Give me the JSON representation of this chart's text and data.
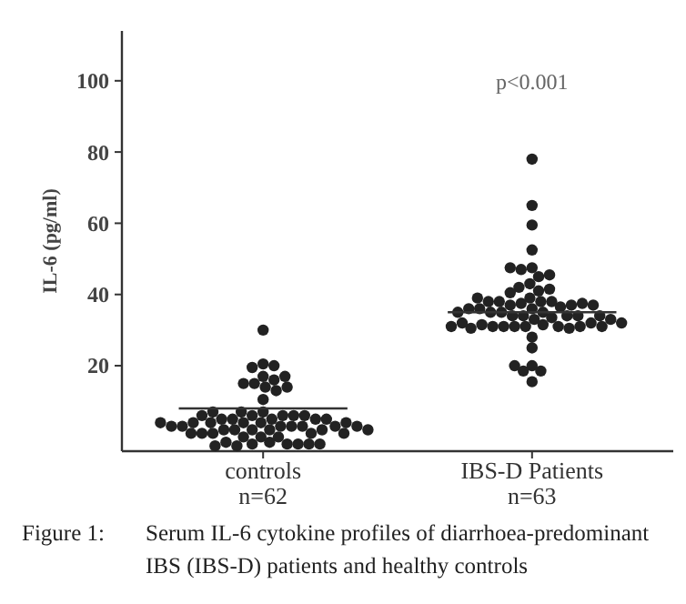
{
  "chart_data": {
    "type": "scatter",
    "ylabel": "IL-6 (pg/ml)",
    "categories": [
      "controls\nn=62",
      "IBS-D Patients\nn=63"
    ],
    "ylim": [
      -4,
      114
    ],
    "yticks": [
      20,
      40,
      60,
      80,
      100
    ],
    "series": [
      {
        "color": "#222222",
        "marker": "circle",
        "x": [
          "controls\nn=62",
          "controls\nn=62",
          "controls\nn=62",
          "controls\nn=62",
          "controls\nn=62",
          "controls\nn=62",
          "controls\nn=62",
          "controls\nn=62",
          "controls\nn=62",
          "controls\nn=62",
          "controls\nn=62",
          "controls\nn=62",
          "controls\nn=62",
          "controls\nn=62",
          "controls\nn=62",
          "controls\nn=62",
          "controls\nn=62",
          "controls\nn=62",
          "controls\nn=62",
          "controls\nn=62",
          "controls\nn=62",
          "controls\nn=62",
          "controls\nn=62",
          "controls\nn=62",
          "controls\nn=62",
          "controls\nn=62",
          "controls\nn=62",
          "controls\nn=62",
          "controls\nn=62",
          "controls\nn=62",
          "controls\nn=62",
          "controls\nn=62",
          "controls\nn=62",
          "controls\nn=62",
          "controls\nn=62",
          "controls\nn=62",
          "controls\nn=62",
          "controls\nn=62",
          "controls\nn=62",
          "controls\nn=62",
          "controls\nn=62",
          "controls\nn=62",
          "controls\nn=62",
          "controls\nn=62",
          "controls\nn=62",
          "controls\nn=62",
          "controls\nn=62",
          "controls\nn=62",
          "controls\nn=62",
          "controls\nn=62",
          "controls\nn=62",
          "controls\nn=62",
          "controls\nn=62",
          "controls\nn=62",
          "controls\nn=62",
          "controls\nn=62",
          "controls\nn=62",
          "controls\nn=62",
          "controls\nn=62",
          "controls\nn=62",
          "controls\nn=62",
          "controls\nn=62"
        ],
        "values": [
          30,
          20.5,
          19.5,
          17,
          20,
          15,
          14,
          13,
          15,
          16,
          17,
          14,
          10.5,
          7,
          6,
          5,
          6,
          7,
          5,
          6,
          4,
          5,
          6,
          7,
          5,
          6,
          5,
          4,
          4,
          3,
          3,
          2,
          4,
          3,
          3,
          2,
          3,
          4,
          2,
          3,
          3,
          2,
          4,
          1,
          1,
          2,
          0,
          1,
          1,
          0,
          2,
          1,
          0,
          -1.5,
          -2,
          -2,
          -2.5,
          -2,
          -1.5,
          -2,
          -2.5,
          -2
        ]
      },
      {
        "color": "#222222",
        "marker": "circle",
        "x": [
          "IBS-D Patients\nn=63",
          "IBS-D Patients\nn=63",
          "IBS-D Patients\nn=63",
          "IBS-D Patients\nn=63",
          "IBS-D Patients\nn=63",
          "IBS-D Patients\nn=63",
          "IBS-D Patients\nn=63",
          "IBS-D Patients\nn=63",
          "IBS-D Patients\nn=63",
          "IBS-D Patients\nn=63",
          "IBS-D Patients\nn=63",
          "IBS-D Patients\nn=63",
          "IBS-D Patients\nn=63",
          "IBS-D Patients\nn=63",
          "IBS-D Patients\nn=63",
          "IBS-D Patients\nn=63",
          "IBS-D Patients\nn=63",
          "IBS-D Patients\nn=63",
          "IBS-D Patients\nn=63",
          "IBS-D Patients\nn=63",
          "IBS-D Patients\nn=63",
          "IBS-D Patients\nn=63",
          "IBS-D Patients\nn=63",
          "IBS-D Patients\nn=63",
          "IBS-D Patients\nn=63",
          "IBS-D Patients\nn=63",
          "IBS-D Patients\nn=63",
          "IBS-D Patients\nn=63",
          "IBS-D Patients\nn=63",
          "IBS-D Patients\nn=63",
          "IBS-D Patients\nn=63",
          "IBS-D Patients\nn=63",
          "IBS-D Patients\nn=63",
          "IBS-D Patients\nn=63",
          "IBS-D Patients\nn=63",
          "IBS-D Patients\nn=63",
          "IBS-D Patients\nn=63",
          "IBS-D Patients\nn=63",
          "IBS-D Patients\nn=63",
          "IBS-D Patients\nn=63",
          "IBS-D Patients\nn=63",
          "IBS-D Patients\nn=63",
          "IBS-D Patients\nn=63",
          "IBS-D Patients\nn=63",
          "IBS-D Patients\nn=63",
          "IBS-D Patients\nn=63",
          "IBS-D Patients\nn=63",
          "IBS-D Patients\nn=63",
          "IBS-D Patients\nn=63",
          "IBS-D Patients\nn=63",
          "IBS-D Patients\nn=63",
          "IBS-D Patients\nn=63",
          "IBS-D Patients\nn=63",
          "IBS-D Patients\nn=63",
          "IBS-D Patients\nn=63",
          "IBS-D Patients\nn=63",
          "IBS-D Patients\nn=63",
          "IBS-D Patients\nn=63",
          "IBS-D Patients\nn=63",
          "IBS-D Patients\nn=63",
          "IBS-D Patients\nn=63",
          "IBS-D Patients\nn=63",
          "IBS-D Patients\nn=63"
        ],
        "values": [
          78,
          65,
          59.5,
          52.5,
          47.5,
          47,
          45,
          43,
          45.5,
          47.5,
          41,
          42,
          41.5,
          40.5,
          39,
          38,
          37.5,
          38,
          37,
          36.5,
          38,
          37,
          36,
          38,
          37.5,
          39,
          36,
          37,
          35,
          34,
          34,
          35,
          33.5,
          34,
          35,
          36,
          34,
          33,
          31,
          31.5,
          31,
          31,
          31,
          30.5,
          31,
          31.5,
          31,
          32,
          30.5,
          31,
          32,
          31,
          25,
          28,
          20,
          18.5,
          15.5,
          18.5,
          20,
          33,
          34,
          32,
          35
        ]
      },
      {
        "type": "box",
        "color": "#333333",
        "boxes": [
          {
            "low": 8,
            "q1": 8,
            "median": 8,
            "q3": 8,
            "high": 8
          },
          {
            "low": 35,
            "q1": 35,
            "median": 35,
            "q3": 35,
            "high": 35
          }
        ]
      }
    ],
    "annotations": [
      "p<0.001",
      "Figure 1:\tSerum IL-6 cytokine profiles of diarrhoea-predominant\nIBS (IBS-D) patients and healthy controls"
    ]
  }
}
